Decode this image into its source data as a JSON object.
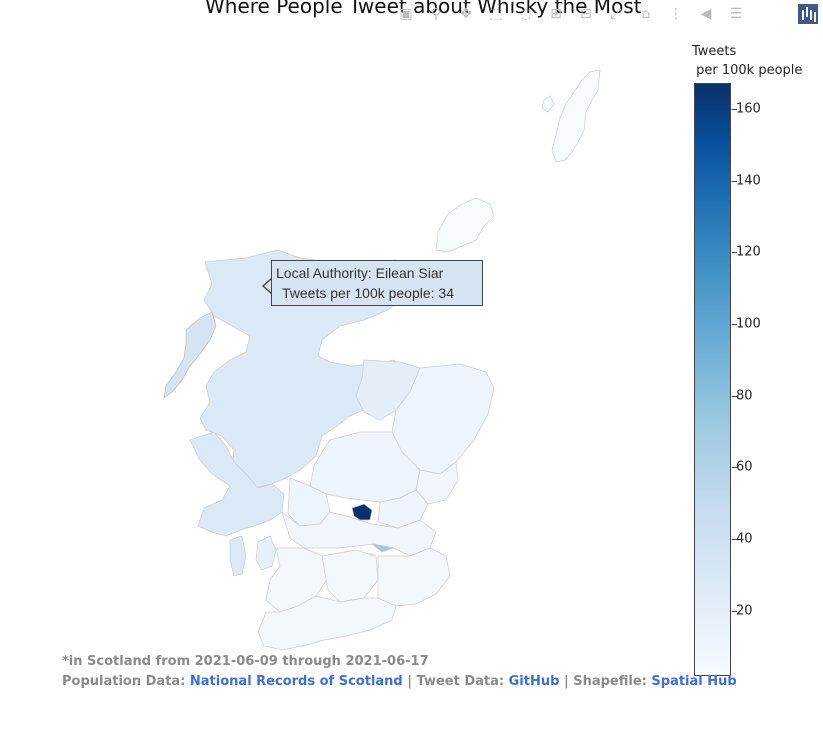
{
  "title": "Where People Tweet about Whisky the Most",
  "modebar": [
    {
      "icon": "camera-icon",
      "glyph": "▣"
    },
    {
      "icon": "zoom-icon",
      "glyph": "⚲"
    },
    {
      "icon": "pan-icon",
      "glyph": "✥"
    },
    {
      "icon": "box-select-icon",
      "glyph": "⬚"
    },
    {
      "icon": "lasso-select-icon",
      "glyph": "◌"
    },
    {
      "icon": "zoom-in-icon",
      "glyph": "⊞"
    },
    {
      "icon": "zoom-out-icon",
      "glyph": "⊟"
    },
    {
      "icon": "autoscale-icon",
      "glyph": "⤢"
    },
    {
      "icon": "reset-axes-icon",
      "glyph": "⌂"
    },
    {
      "icon": "spike-lines-icon",
      "glyph": "⋮"
    },
    {
      "icon": "hover-closest-icon",
      "glyph": "◀"
    },
    {
      "icon": "hover-compare-icon",
      "glyph": "☰"
    }
  ],
  "brand_logo": "plotly-logo-icon",
  "tooltip": {
    "line1": "Local Authority: Eilean Siar",
    "line2": "Tweets per 100k people: 34"
  },
  "colorbar": {
    "title_line1": "Tweets",
    "title_line2": " per 100k people",
    "min": 2,
    "max": 167,
    "ticks": [
      "160",
      "140",
      "120",
      "100",
      "80",
      "60",
      "40",
      "20"
    ],
    "tick_values": [
      160,
      140,
      120,
      100,
      80,
      60,
      40,
      20
    ],
    "colors": [
      "#f7fbff",
      "#deebf7",
      "#c6dbef",
      "#9ecae1",
      "#6baed6",
      "#4292c6",
      "#2171b5",
      "#08519c",
      "#08306b"
    ]
  },
  "map": {
    "highlight_region": "Eilean Siar",
    "highlight_value": 34
  },
  "footer": {
    "note": "*in Scotland from 2021-06-09 through 2021-06-17",
    "pop_label": "Population Data: ",
    "pop_link": "National Records of Scotland",
    "sep1": " | Tweet Data: ",
    "tweet_link": "GitHub",
    "sep2": " | Shapefile: ",
    "shape_link": "Spatial Hub"
  }
}
